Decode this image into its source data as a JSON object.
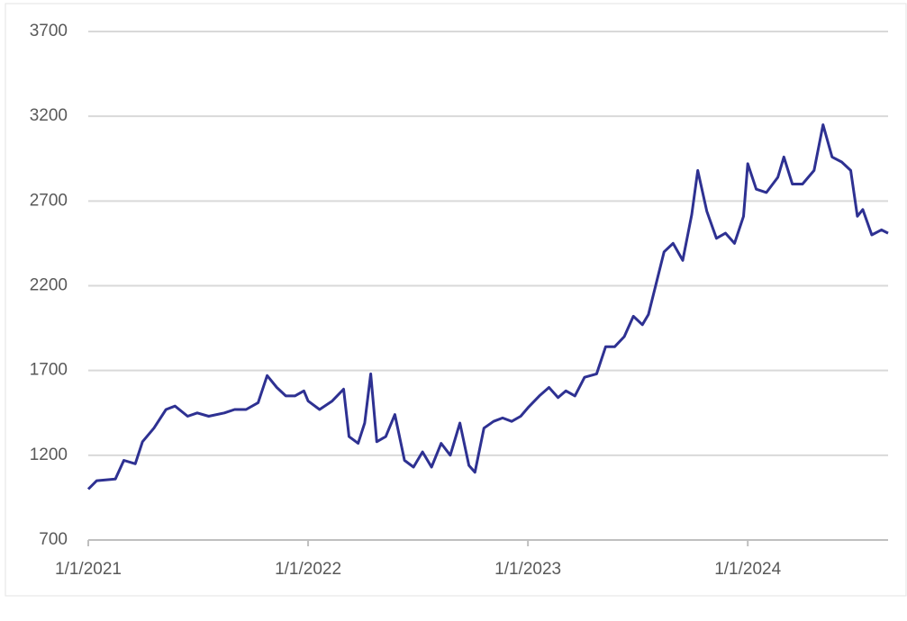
{
  "chart_data": {
    "type": "line",
    "x": [
      "1/1/2021",
      "1/15/2021",
      "2/15/2021",
      "3/1/2021",
      "3/20/2021",
      "4/1/2021",
      "4/20/2021",
      "5/10/2021",
      "5/25/2021",
      "6/15/2021",
      "7/1/2021",
      "7/20/2021",
      "8/15/2021",
      "9/1/2021",
      "9/20/2021",
      "10/10/2021",
      "10/25/2021",
      "11/10/2021",
      "11/25/2021",
      "12/10/2021",
      "12/25/2021",
      "1/1/2022",
      "1/20/2022",
      "2/10/2022",
      "3/1/2022",
      "3/10/2022",
      "3/25/2022",
      "4/5/2022",
      "4/15/2022",
      "4/25/2022",
      "5/10/2022",
      "5/25/2022",
      "6/10/2022",
      "6/25/2022",
      "7/10/2022",
      "7/25/2022",
      "8/10/2022",
      "8/25/2022",
      "9/10/2022",
      "9/25/2022",
      "10/5/2022",
      "10/20/2022",
      "11/5/2022",
      "11/20/2022",
      "12/5/2022",
      "12/20/2022",
      "1/1/2023",
      "1/20/2023",
      "2/5/2023",
      "2/20/2023",
      "3/5/2023",
      "3/20/2023",
      "4/5/2023",
      "4/25/2023",
      "5/10/2023",
      "5/25/2023",
      "6/10/2023",
      "6/25/2023",
      "7/10/2023",
      "7/20/2023",
      "8/1/2023",
      "8/15/2023",
      "8/30/2023",
      "9/15/2023",
      "9/30/2023",
      "10/10/2023",
      "10/25/2023",
      "11/10/2023",
      "11/25/2023",
      "12/10/2023",
      "12/25/2023",
      "1/1/2024",
      "1/15/2024",
      "2/1/2024",
      "2/20/2024",
      "3/1/2024",
      "3/15/2024",
      "4/1/2024",
      "4/20/2024",
      "5/5/2024",
      "5/20/2024",
      "6/5/2024",
      "6/20/2024",
      "7/1/2024",
      "7/10/2024",
      "7/25/2024",
      "8/10/2024",
      "8/21/2024"
    ],
    "series": [
      {
        "color": "#2e3192",
        "values": [
          1000,
          1050,
          1060,
          1170,
          1150,
          1280,
          1360,
          1470,
          1490,
          1430,
          1450,
          1430,
          1450,
          1470,
          1470,
          1510,
          1670,
          1600,
          1550,
          1550,
          1580,
          1520,
          1470,
          1520,
          1590,
          1310,
          1270,
          1390,
          1680,
          1280,
          1310,
          1440,
          1170,
          1130,
          1220,
          1130,
          1270,
          1200,
          1390,
          1140,
          1100,
          1360,
          1400,
          1420,
          1400,
          1430,
          1480,
          1550,
          1600,
          1540,
          1580,
          1550,
          1660,
          1680,
          1840,
          1840,
          1900,
          2020,
          1970,
          2030,
          2200,
          2400,
          2450,
          2350,
          2620,
          2880,
          2640,
          2480,
          2510,
          2450,
          2610,
          2920,
          2770,
          2750,
          2840,
          2960,
          2800,
          2800,
          2880,
          3150,
          2960,
          2930,
          2880,
          2610,
          2650,
          2500,
          2530,
          2510
        ]
      }
    ],
    "xlim": [
      "1/1/2021",
      "8/21/2024"
    ],
    "xticks": [
      "1/1/2021",
      "1/1/2022",
      "1/1/2023",
      "1/1/2024"
    ],
    "ylim": [
      700,
      3700
    ],
    "yticks": [
      700,
      1200,
      1700,
      2200,
      2700,
      3200,
      3700
    ],
    "grid": true
  }
}
